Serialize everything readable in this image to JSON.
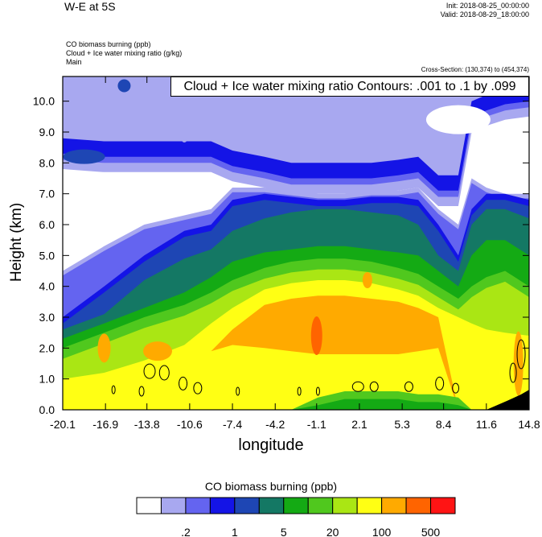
{
  "header": {
    "title": "W-E at 5S",
    "init": "Init: 2018-08-25_00:00:00",
    "valid": "Valid: 2018-08-29_18:00:00",
    "field1": "CO biomass burning   (ppb)",
    "field2": "Cloud + Ice water mixing ratio   (g/kg)",
    "field3": "Main",
    "cross_section": "Cross-Section: (130,374) to (454,374)"
  },
  "chart_data": {
    "type": "heatmap",
    "title": "W-E at 5S",
    "xlabel": "longitude",
    "ylabel": "Height (km)",
    "xlim": [
      -20.1,
      14.8
    ],
    "ylim": [
      0.0,
      10.8
    ],
    "x_ticks": [
      "-20.1",
      "-16.9",
      "-13.8",
      "-10.6",
      "-7.4",
      "-4.2",
      "-1.1",
      "2.1",
      "5.3",
      "8.4",
      "11.6",
      "14.8"
    ],
    "y_ticks": [
      "0.0",
      "1.0",
      "2.0",
      "3.0",
      "4.0",
      "5.0",
      "6.0",
      "7.0",
      "8.0",
      "9.0",
      "10.0"
    ],
    "contour_label": "Cloud + Ice water mixing ratio Contours: .001 to .1 by .099",
    "colorbar": {
      "title": "CO biomass burning  (ppb)",
      "colors": [
        "#ffffff",
        "#a8a8f0",
        "#6464f0",
        "#1414e6",
        "#1e46b4",
        "#147864",
        "#14aa14",
        "#50c81e",
        "#aae614",
        "#ffff14",
        "#ffaa00",
        "#ff6400",
        "#ff1414"
      ],
      "labels": [
        ".2",
        "1",
        "5",
        "20",
        "100",
        "500"
      ]
    },
    "profile": {
      "x": [
        -20.1,
        -17,
        -14,
        -11,
        -9,
        -7.4,
        -5,
        -3,
        -1,
        1,
        3,
        5,
        6.5,
        8,
        9.5,
        10.5,
        11.6,
        13,
        14.8
      ],
      "upper_top": [
        8.8,
        8.7,
        8.7,
        8.7,
        8.7,
        8.4,
        8.2,
        8.0,
        8.0,
        8.0,
        8.0,
        8.1,
        8.2,
        7.6,
        7.6,
        10.0,
        10.2,
        10.4,
        10.5
      ],
      "cloud_base": [
        4.5,
        5.3,
        6.0,
        6.3,
        6.5,
        7.2,
        7.2,
        7.1,
        7.0,
        7.0,
        7.1,
        7.1,
        7.2,
        6.5,
        6.0,
        7.5,
        7.2,
        7.0,
        7.0
      ],
      "dkblue_top": [
        3.0,
        4.0,
        5.0,
        5.8,
        6.0,
        6.8,
        7.0,
        6.9,
        6.8,
        6.8,
        6.9,
        6.9,
        6.8,
        6.0,
        5.0,
        6.5,
        7.0,
        7.0,
        6.8
      ],
      "teal_top": [
        2.6,
        3.1,
        4.2,
        4.9,
        5.2,
        5.8,
        6.2,
        6.4,
        6.5,
        6.5,
        6.4,
        6.3,
        6.0,
        5.0,
        4.5,
        6.0,
        6.5,
        6.5,
        6.2
      ],
      "green_top": [
        2.3,
        2.8,
        3.3,
        3.8,
        4.3,
        4.8,
        5.1,
        5.2,
        5.3,
        5.3,
        5.2,
        5.1,
        5.0,
        4.5,
        4.0,
        5.0,
        5.5,
        5.5,
        5.0
      ],
      "ltgreen_top": [
        2.0,
        2.5,
        3.0,
        3.4,
        3.8,
        4.2,
        4.6,
        4.8,
        4.9,
        4.9,
        4.8,
        4.6,
        4.4,
        4.0,
        3.6,
        4.0,
        4.3,
        4.5,
        4.0
      ],
      "yellow_top": [
        1.0,
        1.2,
        1.6,
        2.1,
        2.8,
        3.3,
        3.9,
        4.1,
        4.2,
        4.2,
        4.1,
        3.9,
        3.7,
        3.3,
        3.0,
        2.8,
        2.6,
        2.5,
        2.4
      ],
      "orange_top": [
        0.0,
        0.0,
        0.0,
        0.0,
        1.9,
        2.6,
        3.4,
        3.6,
        3.7,
        3.7,
        3.6,
        3.5,
        3.3,
        3.0,
        0.0,
        0.0,
        0.0,
        0.0,
        0.0
      ],
      "orange_bottom": [
        0.0,
        0.0,
        0.0,
        0.0,
        1.9,
        2.1,
        2.0,
        1.9,
        1.8,
        1.8,
        1.8,
        1.8,
        1.9,
        2.0,
        0.0,
        0.0,
        0.0,
        0.0,
        0.0
      ],
      "surface_green_top": [
        0.0,
        0.0,
        0.0,
        0.0,
        0.0,
        0.0,
        0.0,
        0.0,
        0.4,
        0.6,
        0.6,
        0.6,
        0.5,
        0.5,
        0.4,
        0.0,
        0.0,
        0.0,
        0.0
      ]
    },
    "grid": false
  }
}
